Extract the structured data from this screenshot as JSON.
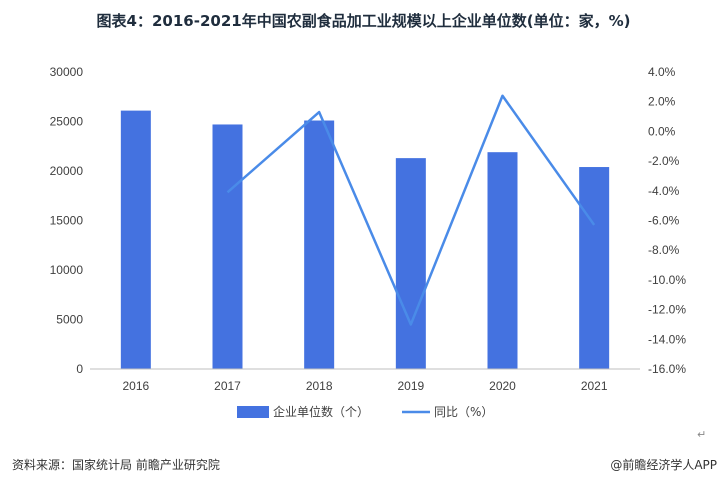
{
  "title": "图表4：2016-2021年中国农副食品加工业规模以上企业单位数(单位：家，%)",
  "source": "资料来源：国家统计局 前瞻产业研究院",
  "brand": "@前瞻经济学人APP",
  "corner_mark": "↵",
  "colors": {
    "bar": "#4472e0",
    "line": "#4a8be8",
    "axis": "#bfbfbf",
    "text": "#404040"
  },
  "chart_data": {
    "type": "bar+line",
    "categories": [
      "2016",
      "2017",
      "2018",
      "2019",
      "2020",
      "2021"
    ],
    "series": [
      {
        "name": "企业单位数（个）",
        "type": "bar",
        "axis": "left",
        "values": [
          26100,
          24700,
          25100,
          21300,
          21900,
          20400
        ]
      },
      {
        "name": "同比（%）",
        "type": "line",
        "axis": "right",
        "values": [
          null,
          -4.1,
          1.3,
          -13.0,
          2.4,
          -6.3
        ]
      }
    ],
    "y_left": {
      "min": 0,
      "max": 30000,
      "ticks": [
        "0",
        "5000",
        "10000",
        "15000",
        "20000",
        "25000",
        "30000"
      ]
    },
    "y_right": {
      "min": -16,
      "max": 4,
      "ticks": [
        "-16.0%",
        "-14.0%",
        "-12.0%",
        "-10.0%",
        "-8.0%",
        "-6.0%",
        "-4.0%",
        "-2.0%",
        "0.0%",
        "2.0%",
        "4.0%"
      ]
    },
    "grid": false,
    "legend_position": "bottom"
  }
}
